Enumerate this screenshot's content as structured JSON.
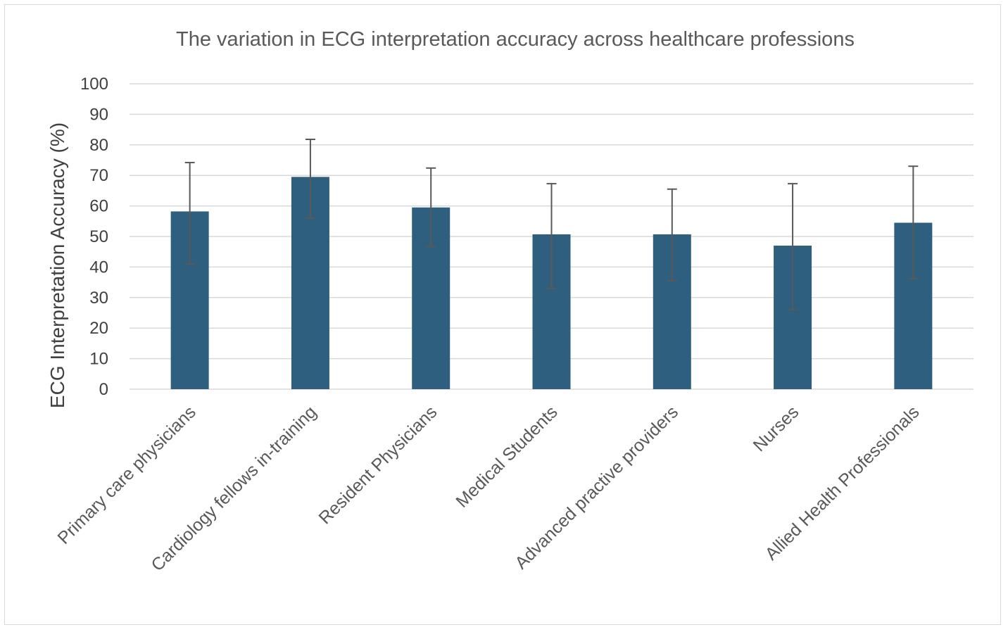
{
  "chart_data": {
    "type": "bar",
    "title": "The variation in ECG interpretation accuracy across healthcare professions",
    "xlabel": "",
    "ylabel": "ECG Interpretation Accuracy (%)",
    "ylim": [
      0,
      100
    ],
    "y_ticks": [
      "0",
      "10",
      "20",
      "30",
      "40",
      "50",
      "60",
      "70",
      "80",
      "90",
      "100"
    ],
    "grid": true,
    "legend": "none",
    "categories": [
      "Primary care physicians",
      "Cardiology fellows in-training",
      "Resident Physicians",
      "Medical Students",
      "Advanced practive providers",
      "Nurses",
      "Allied Health Professionals"
    ],
    "values": [
      58.2,
      69.5,
      59.5,
      50.7,
      50.7,
      47.0,
      54.5
    ],
    "error_low": [
      41.0,
      56.0,
      46.7,
      33.0,
      35.5,
      26.0,
      36.2
    ],
    "error_high": [
      74.2,
      81.8,
      72.4,
      67.3,
      65.5,
      67.3,
      73.0
    ],
    "colors": {
      "bar": "#2e5f7e",
      "error_bar": "#595959",
      "grid": "#d9d9d9"
    }
  }
}
